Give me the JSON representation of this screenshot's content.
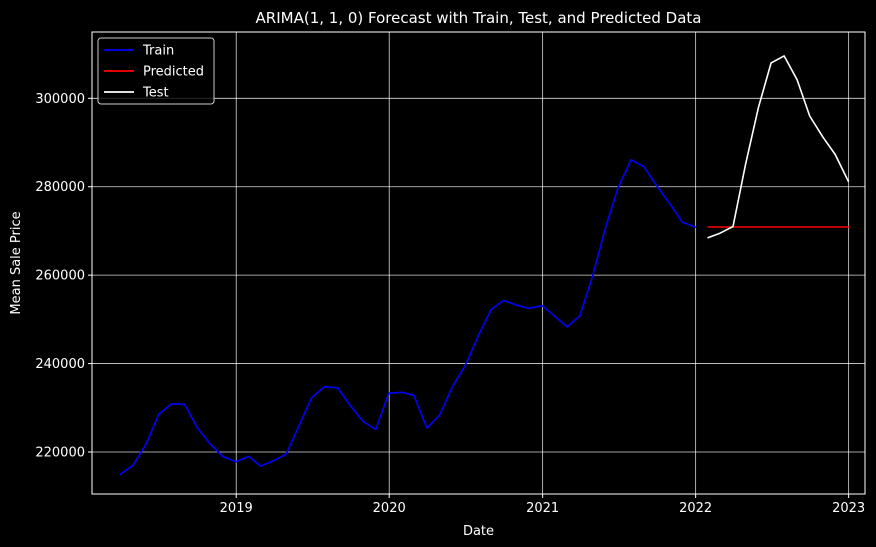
{
  "chart_data": {
    "type": "line",
    "title": "ARIMA(1, 1, 0) Forecast with Train, Test, and Predicted Data",
    "xlabel": "Date",
    "ylabel": "Mean Sale Price",
    "x_range": [
      "2018-01-22",
      "2023-02-09"
    ],
    "ylim": [
      210500,
      315000
    ],
    "x_ticks": [
      "2019-01-01",
      "2020-01-01",
      "2021-01-01",
      "2022-01-01",
      "2023-01-01"
    ],
    "x_tick_labels": [
      "2019",
      "2020",
      "2021",
      "2022",
      "2023"
    ],
    "y_ticks": [
      220000,
      240000,
      260000,
      280000,
      300000
    ],
    "y_tick_labels": [
      "220000",
      "240000",
      "260000",
      "280000",
      "300000"
    ],
    "grid": true,
    "legend": {
      "placement": "top-left",
      "entries": [
        {
          "label": "Train",
          "color": "#0000ff"
        },
        {
          "label": "Predicted",
          "color": "#ff0000"
        },
        {
          "label": "Test",
          "color": "#ffffff"
        }
      ]
    },
    "series": [
      {
        "name": "Train",
        "color": "#0000ff",
        "x": [
          "2018-03-31",
          "2018-04-30",
          "2018-05-31",
          "2018-06-30",
          "2018-07-31",
          "2018-08-31",
          "2018-09-30",
          "2018-10-31",
          "2018-11-30",
          "2018-12-31",
          "2019-01-31",
          "2019-02-28",
          "2019-03-31",
          "2019-04-30",
          "2019-05-31",
          "2019-06-30",
          "2019-07-31",
          "2019-08-31",
          "2019-09-30",
          "2019-10-31",
          "2019-11-30",
          "2019-12-31",
          "2020-01-31",
          "2020-02-29",
          "2020-03-31",
          "2020-04-30",
          "2020-05-31",
          "2020-06-30",
          "2020-07-31",
          "2020-08-31",
          "2020-09-30",
          "2020-10-31",
          "2020-11-30",
          "2020-12-31",
          "2021-01-31",
          "2021-02-28",
          "2021-03-31",
          "2021-04-30",
          "2021-05-31",
          "2021-06-30",
          "2021-07-31",
          "2021-08-31",
          "2021-09-30",
          "2021-10-31",
          "2021-11-30",
          "2021-12-31"
        ],
        "values": [
          215000,
          217000,
          221800,
          228500,
          230900,
          230800,
          225500,
          221800,
          219000,
          217800,
          219000,
          216800,
          218000,
          219500,
          226000,
          232300,
          234800,
          234500,
          230500,
          226900,
          225100,
          233300,
          233500,
          232800,
          225400,
          228300,
          234800,
          239500,
          246200,
          252200,
          254300,
          253200,
          252500,
          253100,
          250600,
          248300,
          250800,
          259700,
          270700,
          279800,
          286100,
          284500,
          280200,
          276200,
          272000,
          270900
        ]
      },
      {
        "name": "Predicted",
        "color": "#ff0000",
        "x": [
          "2022-01-31",
          "2023-01-01"
        ],
        "values": [
          270900,
          270900
        ]
      },
      {
        "name": "Test",
        "color": "#ffffff",
        "x": [
          "2022-01-31",
          "2022-02-28",
          "2022-03-31",
          "2022-04-30",
          "2022-05-31",
          "2022-06-30",
          "2022-07-31",
          "2022-08-31",
          "2022-09-30",
          "2022-10-31",
          "2022-11-30",
          "2022-12-31"
        ],
        "values": [
          268500,
          269500,
          271000,
          285000,
          298000,
          308000,
          309600,
          304200,
          296000,
          291300,
          287300,
          281300
        ]
      }
    ]
  }
}
